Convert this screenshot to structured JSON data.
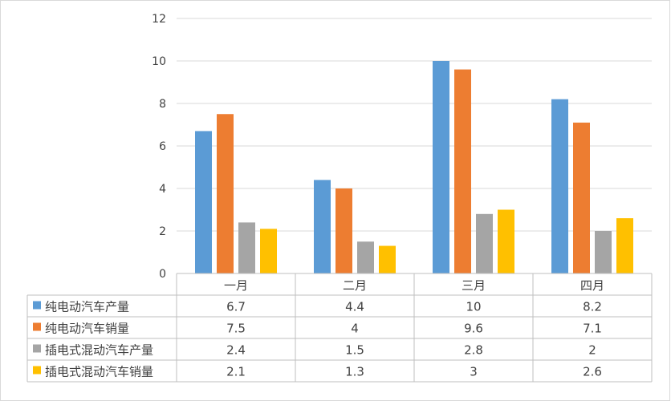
{
  "chart_data": {
    "type": "bar",
    "title": "",
    "xlabel": "",
    "ylabel": "",
    "categories": [
      "一月",
      "二月",
      "三月",
      "四月"
    ],
    "ylim": [
      0,
      12
    ],
    "yticks": [
      0,
      2,
      4,
      6,
      8,
      10,
      12
    ],
    "grid": true,
    "legend": "data-table-left",
    "series": [
      {
        "name": "纯电动汽车产量",
        "color": "#5B9BD5",
        "values": [
          6.7,
          4.4,
          10,
          8.2
        ],
        "labels": [
          "6.7",
          "4.4",
          "10",
          "8.2"
        ]
      },
      {
        "name": "纯电动汽车销量",
        "color": "#ED7D31",
        "values": [
          7.5,
          4,
          9.6,
          7.1
        ],
        "labels": [
          "7.5",
          "4",
          "9.6",
          "7.1"
        ]
      },
      {
        "name": "插电式混动汽车产量",
        "color": "#A5A5A5",
        "values": [
          2.4,
          1.5,
          2.8,
          2
        ],
        "labels": [
          "2.4",
          "1.5",
          "2.8",
          "2"
        ]
      },
      {
        "name": "插电式混动汽车销量",
        "color": "#FFC000",
        "values": [
          2.1,
          1.3,
          3,
          2.6
        ],
        "labels": [
          "2.1",
          "1.3",
          "3",
          "2.6"
        ]
      }
    ]
  }
}
